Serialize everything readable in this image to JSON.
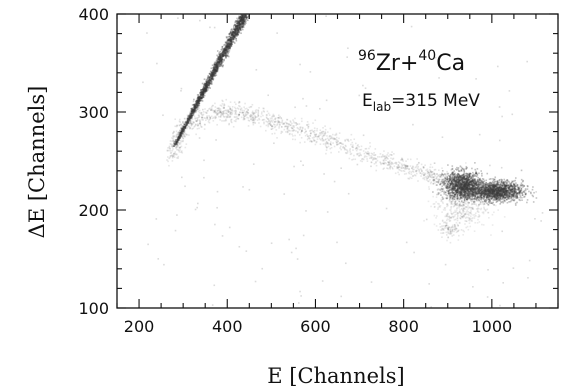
{
  "chart_data": {
    "type": "scatter",
    "xlabel": "E [Channels]",
    "ylabel": "ΔE [Channels]",
    "xlim": [
      150,
      1150
    ],
    "ylim": [
      100,
      400
    ],
    "x_ticks": [
      200,
      400,
      600,
      800,
      1000
    ],
    "y_ticks": [
      100,
      200,
      300,
      400
    ],
    "grid": false,
    "annotations": {
      "reaction": {
        "a_beam": "96",
        "el_beam": "Zr",
        "plus": "+",
        "a_target": "40",
        "el_target": "Ca"
      },
      "energy": {
        "symbol": "E",
        "subscript": "lab",
        "value": "=315 MeV"
      }
    },
    "point_color": "#3a3a3a",
    "clusters": [
      {
        "kind": "line",
        "from": [
          280,
          265
        ],
        "to": [
          440,
          400
        ],
        "width": 4,
        "count": 1800,
        "alpha": 0.35
      },
      {
        "kind": "arc",
        "points": [
          [
            275,
            255
          ],
          [
            300,
            285
          ],
          [
            380,
            300
          ],
          [
            450,
            298
          ],
          [
            550,
            283
          ],
          [
            650,
            268
          ],
          [
            750,
            252
          ],
          [
            850,
            237
          ],
          [
            920,
            228
          ]
        ],
        "width": 5,
        "count": 1400,
        "alpha": 0.12
      },
      {
        "kind": "blob",
        "center": [
          935,
          225
        ],
        "spread": [
          22,
          7
        ],
        "count": 1300,
        "alpha": 0.3
      },
      {
        "kind": "blob",
        "center": [
          1010,
          219
        ],
        "spread": [
          30,
          5
        ],
        "count": 1500,
        "alpha": 0.3
      },
      {
        "kind": "blob",
        "center": [
          930,
          205
        ],
        "spread": [
          30,
          12
        ],
        "count": 450,
        "alpha": 0.1
      },
      {
        "kind": "blob",
        "center": [
          905,
          182
        ],
        "spread": [
          12,
          5
        ],
        "count": 90,
        "alpha": 0.12
      },
      {
        "kind": "noise",
        "xrange": [
          200,
          1120
        ],
        "yrange": [
          100,
          400
        ],
        "count": 140,
        "alpha": 0.18
      }
    ]
  }
}
